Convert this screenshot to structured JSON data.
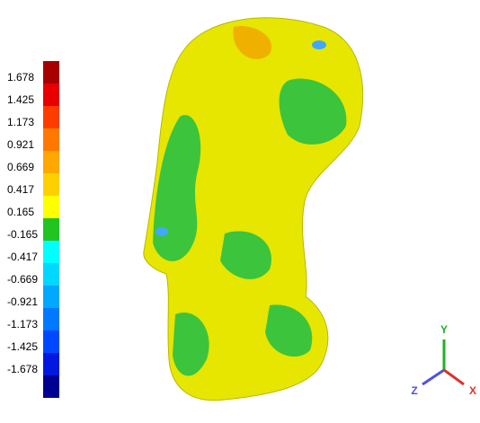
{
  "legend": {
    "labels": [
      "1.678",
      "1.425",
      "1.173",
      "0.921",
      "0.669",
      "0.417",
      "0.165",
      "-0.165",
      "-0.417",
      "-0.669",
      "-0.921",
      "-1.173",
      "-1.425",
      "-1.678"
    ],
    "colors": [
      "#a80000",
      "#e80000",
      "#ff3c00",
      "#ff7800",
      "#ffa800",
      "#ffd000",
      "#ffff00",
      "#22c422",
      "#00ffff",
      "#00d8ff",
      "#00a8ff",
      "#0078ff",
      "#0048ff",
      "#0018e0",
      "#000090"
    ]
  },
  "triad": {
    "labels": [
      "Y",
      "Z",
      "X"
    ]
  }
}
